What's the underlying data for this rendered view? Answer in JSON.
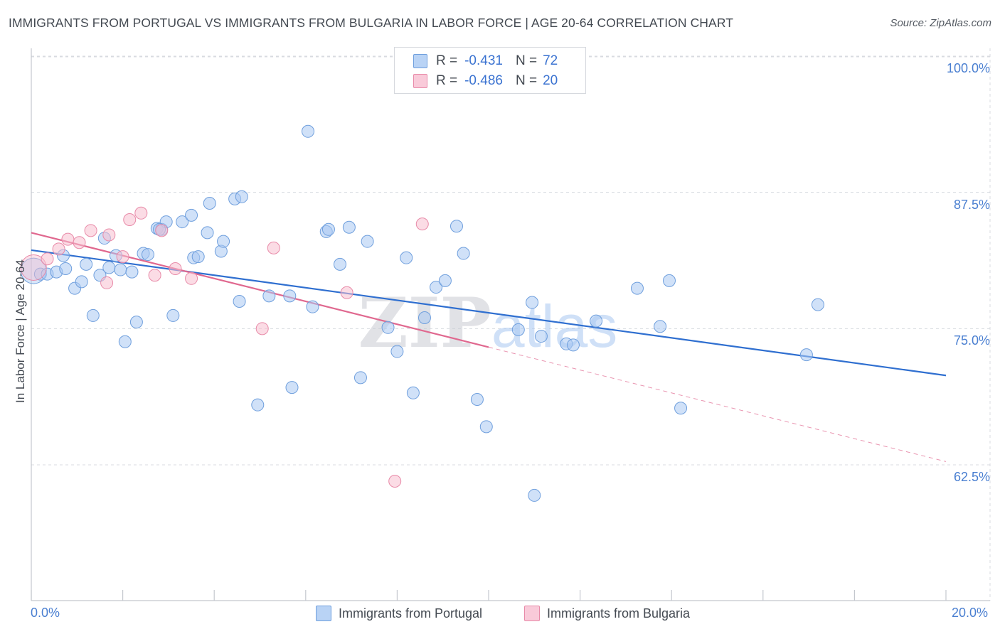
{
  "header": {
    "title": "IMMIGRANTS FROM PORTUGAL VS IMMIGRANTS FROM BULGARIA IN LABOR FORCE | AGE 20-64 CORRELATION CHART",
    "source": "Source: ZipAtlas.com"
  },
  "legend": {
    "rows": [
      {
        "r_label": "R =",
        "r_value": "-0.431",
        "n_label": "N =",
        "n_value": "72"
      },
      {
        "r_label": "R =",
        "r_value": "-0.486",
        "n_label": "N =",
        "n_value": "20"
      }
    ]
  },
  "bottom_legend": {
    "items": [
      {
        "label": "Immigrants from Portugal"
      },
      {
        "label": "Immigrants from Bulgaria"
      }
    ]
  },
  "colors": {
    "portugal_fill": "#a9c8f2",
    "portugal_stroke": "#6f9fdd",
    "portugal_line": "#2f6fd0",
    "bulgaria_fill": "#f7bfd0",
    "bulgaria_stroke": "#e88aa8",
    "bulgaria_line": "#e0688f",
    "axis_label": "#4a7fd1",
    "grid": "#d8dbe0"
  },
  "chart_data": {
    "type": "scatter",
    "title": "IMMIGRANTS FROM PORTUGAL VS IMMIGRANTS FROM BULGARIA IN LABOR FORCE | AGE 20-64 CORRELATION CHART",
    "xlabel": "",
    "ylabel": "In Labor Force | Age 20-64",
    "xlim": [
      0,
      20
    ],
    "ylim": [
      50,
      102
    ],
    "x_tick_labels": [
      "0.0%",
      "20.0%"
    ],
    "y_ticks": [
      62.5,
      75.0,
      87.5,
      100.0
    ],
    "y_tick_labels": [
      "62.5%",
      "75.0%",
      "87.5%",
      "100.0%"
    ],
    "grid": true,
    "legend_position": "top-center",
    "watermark": "ZIPatlas",
    "series": [
      {
        "name": "Immigrants from Portugal",
        "r": -0.431,
        "n": 72,
        "trend": {
          "x": [
            0,
            20
          ],
          "y": [
            82.2,
            70.7
          ],
          "style": "solid"
        },
        "points": [
          {
            "x": 0.05,
            "y": 80.3,
            "big": true
          },
          {
            "x": 0.2,
            "y": 80.0
          },
          {
            "x": 0.35,
            "y": 80.0
          },
          {
            "x": 0.55,
            "y": 80.2
          },
          {
            "x": 0.7,
            "y": 81.7
          },
          {
            "x": 0.75,
            "y": 80.5
          },
          {
            "x": 0.95,
            "y": 78.7
          },
          {
            "x": 1.1,
            "y": 79.3
          },
          {
            "x": 1.2,
            "y": 80.9
          },
          {
            "x": 1.35,
            "y": 76.2
          },
          {
            "x": 1.5,
            "y": 79.9
          },
          {
            "x": 1.6,
            "y": 83.3
          },
          {
            "x": 1.7,
            "y": 80.6
          },
          {
            "x": 1.85,
            "y": 81.7
          },
          {
            "x": 1.95,
            "y": 80.4
          },
          {
            "x": 2.05,
            "y": 73.8
          },
          {
            "x": 2.2,
            "y": 80.2
          },
          {
            "x": 2.3,
            "y": 75.6
          },
          {
            "x": 2.45,
            "y": 81.9
          },
          {
            "x": 2.55,
            "y": 81.8
          },
          {
            "x": 2.75,
            "y": 84.2
          },
          {
            "x": 2.85,
            "y": 84.1
          },
          {
            "x": 2.95,
            "y": 84.8
          },
          {
            "x": 3.1,
            "y": 76.2
          },
          {
            "x": 3.3,
            "y": 84.8
          },
          {
            "x": 3.5,
            "y": 85.4
          },
          {
            "x": 3.55,
            "y": 81.5
          },
          {
            "x": 3.65,
            "y": 81.6
          },
          {
            "x": 3.85,
            "y": 83.8
          },
          {
            "x": 3.9,
            "y": 86.5
          },
          {
            "x": 4.15,
            "y": 82.1
          },
          {
            "x": 4.2,
            "y": 83.0
          },
          {
            "x": 4.45,
            "y": 86.9
          },
          {
            "x": 4.6,
            "y": 87.1
          },
          {
            "x": 4.55,
            "y": 77.5
          },
          {
            "x": 4.95,
            "y": 68.0
          },
          {
            "x": 5.2,
            "y": 78.0
          },
          {
            "x": 5.65,
            "y": 78.0
          },
          {
            "x": 5.7,
            "y": 69.6
          },
          {
            "x": 6.05,
            "y": 93.1
          },
          {
            "x": 6.15,
            "y": 77.0
          },
          {
            "x": 6.45,
            "y": 83.9
          },
          {
            "x": 6.5,
            "y": 84.1
          },
          {
            "x": 6.75,
            "y": 80.9
          },
          {
            "x": 6.95,
            "y": 84.3
          },
          {
            "x": 7.2,
            "y": 70.5
          },
          {
            "x": 7.35,
            "y": 83.0
          },
          {
            "x": 7.8,
            "y": 75.1
          },
          {
            "x": 8.0,
            "y": 72.9
          },
          {
            "x": 8.2,
            "y": 81.5
          },
          {
            "x": 8.35,
            "y": 69.1
          },
          {
            "x": 8.6,
            "y": 76.0
          },
          {
            "x": 8.85,
            "y": 78.8
          },
          {
            "x": 9.05,
            "y": 79.4
          },
          {
            "x": 9.3,
            "y": 84.4
          },
          {
            "x": 9.45,
            "y": 81.9
          },
          {
            "x": 9.75,
            "y": 68.5
          },
          {
            "x": 9.95,
            "y": 66.0
          },
          {
            "x": 10.65,
            "y": 74.9
          },
          {
            "x": 10.95,
            "y": 77.4
          },
          {
            "x": 11.15,
            "y": 74.3
          },
          {
            "x": 11.7,
            "y": 73.6
          },
          {
            "x": 11.85,
            "y": 73.5
          },
          {
            "x": 12.35,
            "y": 75.7
          },
          {
            "x": 13.25,
            "y": 78.7
          },
          {
            "x": 13.75,
            "y": 75.2
          },
          {
            "x": 13.95,
            "y": 79.4
          },
          {
            "x": 14.2,
            "y": 67.7
          },
          {
            "x": 11.0,
            "y": 59.7
          },
          {
            "x": 16.95,
            "y": 72.6
          },
          {
            "x": 17.2,
            "y": 77.2
          },
          {
            "x": 2.8,
            "y": 84.1
          }
        ]
      },
      {
        "name": "Immigrants from Bulgaria",
        "r": -0.486,
        "n": 20,
        "trend": {
          "x": [
            0,
            10.0
          ],
          "y": [
            83.8,
            73.3
          ],
          "style": "solid",
          "extension": {
            "x": [
              10.0,
              20
            ],
            "y": [
              73.3,
              62.8
            ],
            "style": "dashed"
          }
        },
        "points": [
          {
            "x": 0.05,
            "y": 80.6,
            "big": true
          },
          {
            "x": 0.35,
            "y": 81.4
          },
          {
            "x": 0.6,
            "y": 82.3
          },
          {
            "x": 0.8,
            "y": 83.2
          },
          {
            "x": 1.05,
            "y": 82.9
          },
          {
            "x": 1.3,
            "y": 84.0
          },
          {
            "x": 1.65,
            "y": 79.2
          },
          {
            "x": 1.7,
            "y": 83.6
          },
          {
            "x": 2.0,
            "y": 81.6
          },
          {
            "x": 2.15,
            "y": 85.0
          },
          {
            "x": 2.4,
            "y": 85.6
          },
          {
            "x": 2.85,
            "y": 84.0
          },
          {
            "x": 2.7,
            "y": 79.9
          },
          {
            "x": 3.15,
            "y": 80.5
          },
          {
            "x": 3.5,
            "y": 79.6
          },
          {
            "x": 5.05,
            "y": 75.0
          },
          {
            "x": 5.3,
            "y": 82.4
          },
          {
            "x": 6.9,
            "y": 78.3
          },
          {
            "x": 7.95,
            "y": 61.0
          },
          {
            "x": 8.55,
            "y": 84.6
          }
        ]
      }
    ]
  }
}
